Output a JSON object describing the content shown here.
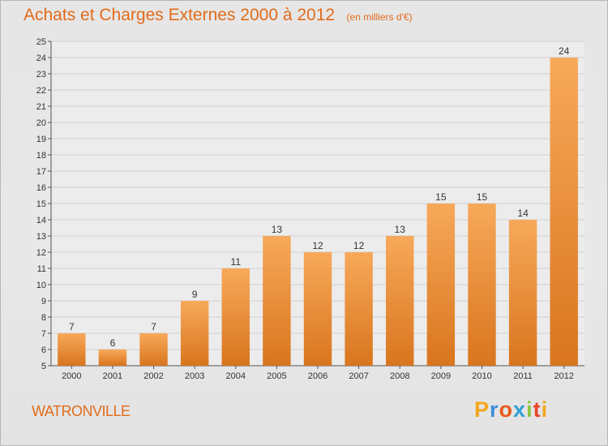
{
  "header": {
    "title": "Achats et Charges Externes 2000 à 2012",
    "subtitle": "(en milliers d'€)"
  },
  "footer": {
    "city": "WATRONVILLE",
    "brand": "Proxiti"
  },
  "colors": {
    "accent": "#e26b1a",
    "bar_top": "#f7a95a",
    "bar_bottom": "#d9751e",
    "brand_letters": [
      "#f2a71a",
      "#3d8fd6",
      "#e85a1a",
      "#2f9fd6",
      "#8cc641",
      "#e8462a",
      "#f2a71a"
    ]
  },
  "chart_data": {
    "type": "bar",
    "categories": [
      "2000",
      "2001",
      "2002",
      "2003",
      "2004",
      "2005",
      "2006",
      "2007",
      "2008",
      "2009",
      "2010",
      "2011",
      "2012"
    ],
    "values": [
      7,
      6,
      7,
      9,
      11,
      13,
      12,
      12,
      13,
      15,
      15,
      14,
      24
    ],
    "value_labels": [
      "7",
      "6",
      "7",
      "9",
      "11",
      "13",
      "12",
      "12",
      "13",
      "15",
      "15",
      "14",
      "24"
    ],
    "title": "Achats et Charges Externes 2000 à 2012",
    "subtitle": "(en milliers d'€)",
    "ylim": [
      5,
      25
    ],
    "yticks": [
      "5",
      "6",
      "7",
      "8",
      "9",
      "10",
      "11",
      "12",
      "13",
      "14",
      "15",
      "16",
      "17",
      "18",
      "19",
      "20",
      "21",
      "22",
      "23",
      "24",
      "25"
    ],
    "grid": true
  }
}
